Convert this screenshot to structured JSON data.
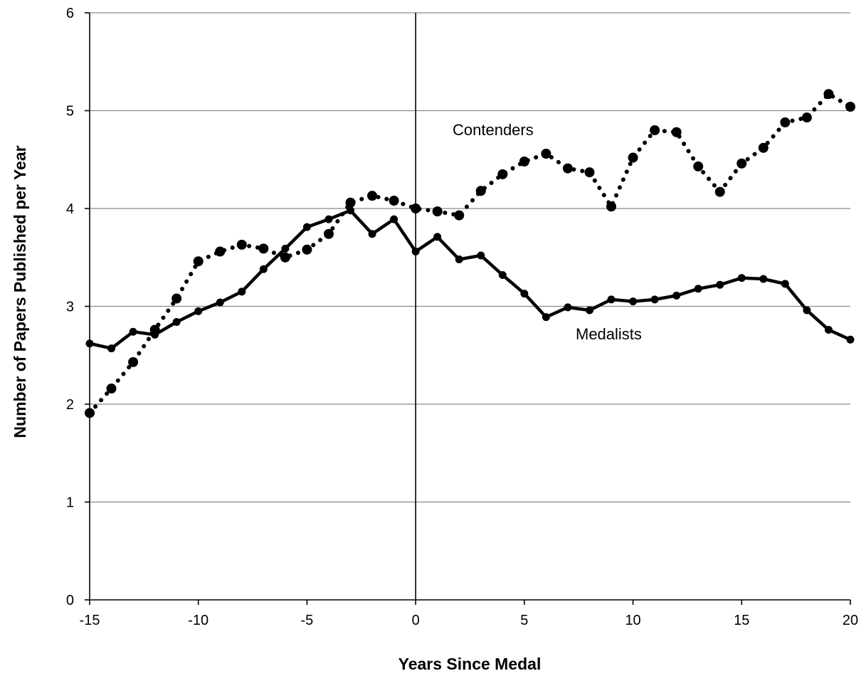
{
  "chart_data": {
    "type": "line",
    "title": "",
    "xlabel": "Years Since Medal",
    "ylabel": "Number of Papers Published per Year",
    "xlim": [
      -15,
      20
    ],
    "ylim": [
      0,
      6
    ],
    "xticks": [
      "-15",
      "-10",
      "-5",
      "0",
      "5",
      "10",
      "15",
      "20"
    ],
    "yticks": [
      "0",
      "1",
      "2",
      "3",
      "4",
      "5",
      "6"
    ],
    "grid": "horizontal",
    "legend": "none",
    "annotations": [
      {
        "text": "Contenders",
        "series": "Contenders"
      },
      {
        "text": "Medalists",
        "series": "Medalists"
      }
    ],
    "x": [
      -15,
      -14,
      -13,
      -12,
      -11,
      -10,
      -9,
      -8,
      -7,
      -6,
      -5,
      -4,
      -3,
      -2,
      -1,
      0,
      1,
      2,
      3,
      4,
      5,
      6,
      7,
      8,
      9,
      10,
      11,
      12,
      13,
      14,
      15,
      16,
      17,
      18,
      19,
      20
    ],
    "series": [
      {
        "name": "Medalists",
        "style": "solid",
        "color": "#000000",
        "values": [
          2.62,
          2.57,
          2.74,
          2.71,
          2.84,
          2.95,
          3.04,
          3.15,
          3.38,
          3.59,
          3.81,
          3.89,
          3.98,
          3.74,
          3.89,
          3.56,
          3.71,
          3.48,
          3.52,
          3.32,
          3.13,
          2.89,
          2.99,
          2.96,
          3.07,
          3.05,
          3.07,
          3.11,
          3.18,
          3.22,
          3.29,
          3.28,
          3.23,
          2.96,
          2.76,
          2.66
        ]
      },
      {
        "name": "Contenders",
        "style": "dotted",
        "color": "#000000",
        "values": [
          1.91,
          2.16,
          2.43,
          2.76,
          3.08,
          3.46,
          3.56,
          3.63,
          3.59,
          3.5,
          3.58,
          3.74,
          4.06,
          4.13,
          4.08,
          4.0,
          3.97,
          3.93,
          4.18,
          4.35,
          4.48,
          4.56,
          4.41,
          4.37,
          4.02,
          4.52,
          4.8,
          4.78,
          4.43,
          4.17,
          4.46,
          4.62,
          4.88,
          4.93,
          5.17,
          5.04
        ]
      }
    ]
  }
}
